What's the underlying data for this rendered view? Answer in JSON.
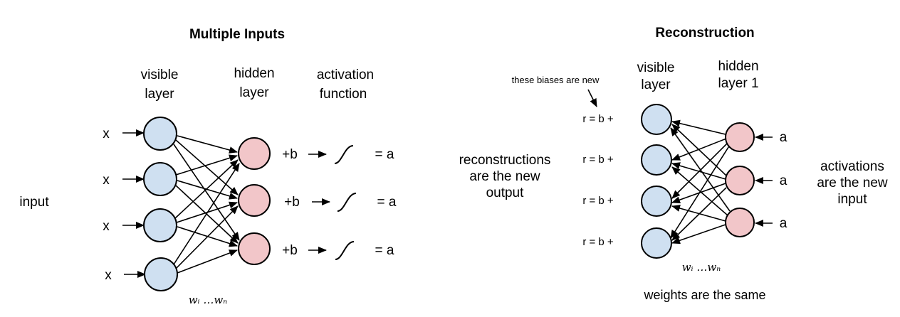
{
  "left_panel": {
    "title": "Multiple Inputs",
    "visible_layer_label": [
      "visible",
      "layer"
    ],
    "hidden_layer_label": [
      "hidden",
      "layer"
    ],
    "activation_label": [
      "activation",
      "function"
    ],
    "input_label": "input",
    "x_labels": [
      "x",
      "x",
      "x",
      "x"
    ],
    "bias_labels": [
      "+b",
      "+b",
      "+b"
    ],
    "output_labels": [
      "= a",
      "= a",
      "= a"
    ],
    "weights_label": "wᵢ …wₙ",
    "colors": {
      "visible": "#cfe0f1",
      "hidden": "#f2c6c9"
    }
  },
  "right_panel": {
    "title": "Reconstruction",
    "bias_note": "these biases are new",
    "visible_layer_label": [
      "visible",
      "layer"
    ],
    "hidden_layer_label": [
      "hidden",
      "layer 1"
    ],
    "reconstruction_labels": [
      "r = b +",
      "r = b +",
      "r = b +",
      "r = b +"
    ],
    "reconstructions_note": [
      "reconstructions",
      "are the new",
      "output"
    ],
    "activation_labels": [
      "a",
      "a",
      "a"
    ],
    "activations_note": [
      "activations",
      "are the new",
      "input"
    ],
    "weights_label": "wᵢ …wₙ",
    "weights_note": "weights are the same"
  }
}
